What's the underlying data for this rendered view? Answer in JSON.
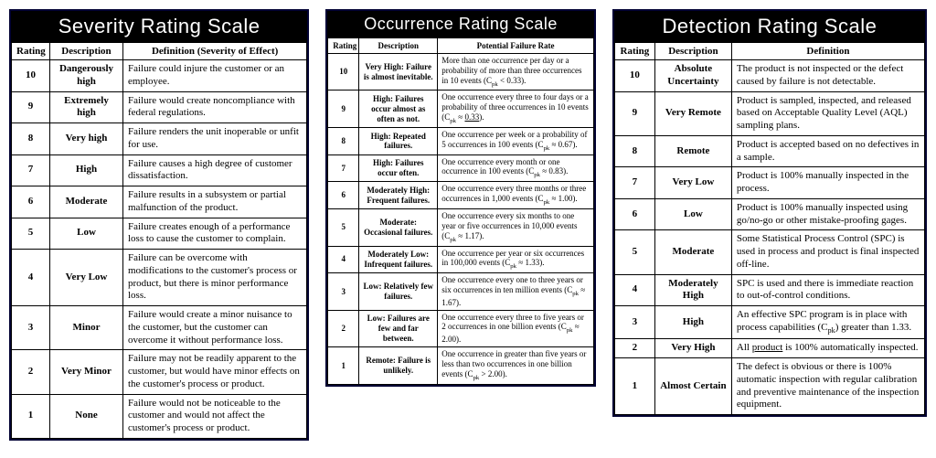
{
  "colors": {
    "page_bg": "#ffffff",
    "table_border": "#000033",
    "cell_border": "#000000",
    "header_bg": "#000000",
    "header_fg": "#ffffff",
    "text": "#000000"
  },
  "typography": {
    "title_font": "Impact",
    "body_font": "Times New Roman",
    "title_size_large": 22,
    "title_size_small": 18,
    "body_size_normal": 11,
    "body_size_small": 9
  },
  "severity": {
    "title": "Severity Rating Scale",
    "columns": [
      "Rating",
      "Description",
      "Definition (Severity of Effect)"
    ],
    "rows": [
      {
        "rating": "10",
        "desc": "Dangerously high",
        "def": "Failure could injure the customer or an employee."
      },
      {
        "rating": "9",
        "desc": "Extremely high",
        "def": "Failure would create noncompliance with federal regulations."
      },
      {
        "rating": "8",
        "desc": "Very high",
        "def": "Failure renders the unit inoperable or unfit for use."
      },
      {
        "rating": "7",
        "desc": "High",
        "def": "Failure causes a high degree of customer dissatisfaction."
      },
      {
        "rating": "6",
        "desc": "Moderate",
        "def": "Failure results in a subsystem or partial malfunction of the product."
      },
      {
        "rating": "5",
        "desc": "Low",
        "def": "Failure creates enough of a performance loss to cause the customer to complain."
      },
      {
        "rating": "4",
        "desc": "Very Low",
        "def": "Failure can be overcome with modifications to the customer's process or product, but there is minor performance loss."
      },
      {
        "rating": "3",
        "desc": "Minor",
        "def": "Failure would create a minor nuisance to the customer, but the customer can overcome it without performance loss."
      },
      {
        "rating": "2",
        "desc": "Very Minor",
        "def": "Failure may not be readily apparent to the customer, but would have minor effects on the customer's process or product."
      },
      {
        "rating": "1",
        "desc": "None",
        "def": "Failure would not be noticeable to the customer and would not affect the customer's process or product."
      }
    ]
  },
  "occurrence": {
    "title": "Occurrence Rating Scale",
    "columns": [
      "Rating",
      "Description",
      "Potential Failure Rate"
    ],
    "rows": [
      {
        "rating": "10",
        "desc": "Very High: Failure is almost inevitable.",
        "def": "More than one occurrence per day or a probability of more than three occurrences in 10 events (C<sub>pk</sub> &lt; 0.33)."
      },
      {
        "rating": "9",
        "desc": "High: Failures occur almost as often as not.",
        "def": "One occurrence every three to four days or a probability of three occurrences in 10 events (C<sub>pk</sub> ≈ <u>0.33</u>)."
      },
      {
        "rating": "8",
        "desc": "High: Repeated failures.",
        "def": "One occurrence per week or a probability of 5 occurrences in 100 events (C<sub>pk</sub> ≈ 0.67)."
      },
      {
        "rating": "7",
        "desc": "High: Failures occur often.",
        "def": "One occurrence every month or one occurrence in 100 events (C<sub>pk</sub> ≈ 0.83)."
      },
      {
        "rating": "6",
        "desc": "Moderately High: Frequent failures.",
        "def": "One occurrence every three months or three occurrences in 1,000 events (C<sub>pk</sub> ≈ 1.00)."
      },
      {
        "rating": "5",
        "desc": "Moderate: Occasional failures.",
        "def": "One occurrence every six months to one year or five occurrences in 10,000 events (C<sub>pk</sub> ≈ 1.17)."
      },
      {
        "rating": "4",
        "desc": "Moderately Low: Infrequent failures.",
        "def": "One occurrence per year or six occurrences in 100,000 events (C<sub>pk</sub> ≈ 1.33)."
      },
      {
        "rating": "3",
        "desc": "Low: Relatively few failures.",
        "def": "One occurrence every one to three years or six occurrences in ten million events (C<sub>pk</sub> ≈ 1.67)."
      },
      {
        "rating": "2",
        "desc": "Low: Failures are few and far between.",
        "def": "One occurrence every three to five years or 2 occurrences in one billion events (C<sub>pk</sub> ≈ 2.00)."
      },
      {
        "rating": "1",
        "desc": "Remote: Failure is unlikely.",
        "def": "One occurrence in greater than five years or less than two occurrences in one billion events (C<sub>pk</sub> &gt; 2.00)."
      }
    ]
  },
  "detection": {
    "title": "Detection Rating Scale",
    "columns": [
      "Rating",
      "Description",
      "Definition"
    ],
    "rows": [
      {
        "rating": "10",
        "desc": "Absolute Uncertainty",
        "def": "The product is not inspected or the defect caused by failure is not detectable."
      },
      {
        "rating": "9",
        "desc": "Very Remote",
        "def": "Product is sampled, inspected, and released based on Acceptable Quality Level (AQL) sampling plans."
      },
      {
        "rating": "8",
        "desc": "Remote",
        "def": "Product is accepted based on no defectives in a sample."
      },
      {
        "rating": "7",
        "desc": "Very Low",
        "def": "Product is 100% manually inspected in the process."
      },
      {
        "rating": "6",
        "desc": "Low",
        "def": "Product is 100% manually inspected using go/no-go or other mistake-proofing gages."
      },
      {
        "rating": "5",
        "desc": "Moderate",
        "def": "Some Statistical Process Control (SPC) is used in process and product is final inspected off-line."
      },
      {
        "rating": "4",
        "desc": "Moderately High",
        "def": "SPC is used and there is immediate reaction to out-of-control conditions."
      },
      {
        "rating": "3",
        "desc": "High",
        "def": "An effective SPC program is in place with process capabilities (C<sub>pk</sub>) greater than 1.33."
      },
      {
        "rating": "2",
        "desc": "Very High",
        "def": "All <u>product</u> is 100% automatically inspected."
      },
      {
        "rating": "1",
        "desc": "Almost Certain",
        "def": "The defect is obvious or there is 100% automatic inspection with regular calibration and preventive maintenance of the inspection equipment."
      }
    ]
  }
}
